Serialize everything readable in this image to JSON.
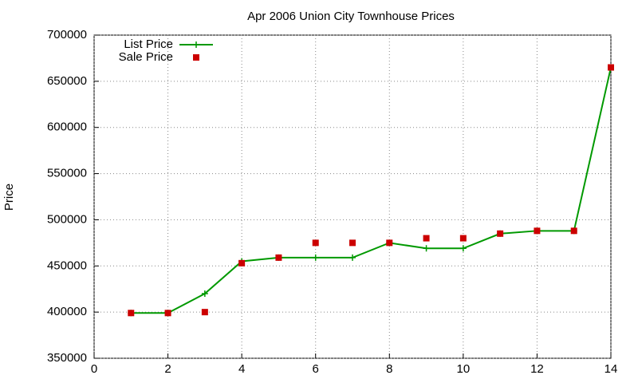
{
  "chart_data": {
    "type": "line",
    "title": "Apr 2006 Union City Townhouse Prices",
    "y_label": "Price",
    "x": [
      1,
      2,
      3,
      4,
      5,
      6,
      7,
      8,
      9,
      10,
      11,
      12,
      13,
      14
    ],
    "series": [
      {
        "name": "List Price",
        "color": "#009900",
        "mode": "lines+markers",
        "values": [
          399000,
          399000,
          420000,
          455000,
          459000,
          459000,
          459000,
          475000,
          469000,
          469000,
          485000,
          488000,
          488000,
          665000
        ]
      },
      {
        "name": "Sale Price",
        "color": "#cc0000",
        "mode": "markers",
        "values": [
          399000,
          399000,
          400000,
          453000,
          459000,
          475000,
          475000,
          475000,
          480000,
          480000,
          485000,
          488000,
          488000,
          665000
        ]
      }
    ],
    "xlim": [
      0,
      14
    ],
    "xticks": [
      0,
      2,
      4,
      6,
      8,
      10,
      12,
      14
    ],
    "ylim": [
      350000,
      700000
    ],
    "yticks": [
      350000,
      400000,
      450000,
      500000,
      550000,
      600000,
      650000,
      700000
    ],
    "grid": true,
    "legend": "top-left"
  }
}
